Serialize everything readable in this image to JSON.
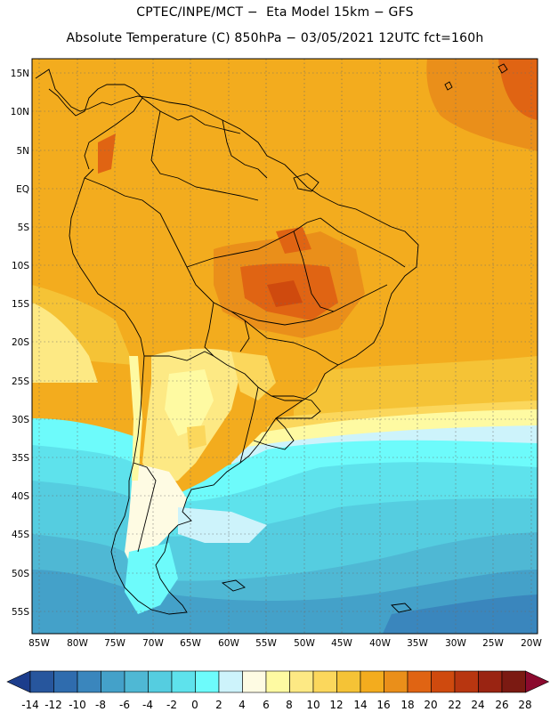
{
  "header": {
    "line1": "CPTEC/INPE/MCT −  Eta Model 15km − GFS",
    "line2": "Absolute Temperature (C) 850hPa − 03/05/2021 12UTC fct=160h"
  },
  "map": {
    "lat_labels": [
      "15N",
      "10N",
      "5N",
      "EQ",
      "5S",
      "10S",
      "15S",
      "20S",
      "25S",
      "30S",
      "35S",
      "40S",
      "45S",
      "50S",
      "55S"
    ],
    "lon_labels": [
      "85W",
      "80W",
      "75W",
      "70W",
      "65W",
      "60W",
      "55W",
      "50W",
      "45W",
      "40W",
      "35W",
      "30W",
      "25W",
      "20W"
    ]
  },
  "colorbar": {
    "labels": [
      "-14",
      "-12",
      "-10",
      "-8",
      "-6",
      "-4",
      "-2",
      "0",
      "2",
      "4",
      "6",
      "8",
      "10",
      "12",
      "14",
      "16",
      "18",
      "20",
      "22",
      "24",
      "26",
      "28"
    ],
    "colors": [
      "#1c3d8c",
      "#27569d",
      "#2f6cae",
      "#3a86bd",
      "#44a1c9",
      "#4fb8d4",
      "#55cde0",
      "#5ee2ec",
      "#6dfbfb",
      "#cdf3fb",
      "#fefbe3",
      "#fefaa2",
      "#fde984",
      "#fbd75c",
      "#f5c336",
      "#f3ac1e",
      "#ea8f1a",
      "#e06413",
      "#cf4a0e",
      "#b83610",
      "#9a2412",
      "#7b1a12",
      "#8b0a2e"
    ]
  }
}
